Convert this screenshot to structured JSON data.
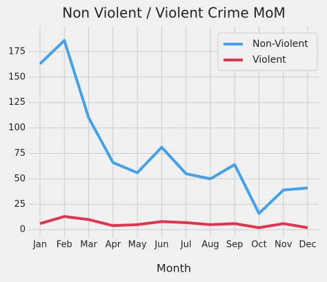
{
  "chart_data": {
    "type": "line",
    "title": "Non Violent / Violent Crime MoM",
    "x_label": "Month",
    "categories": [
      "Jan",
      "Feb",
      "Mar",
      "Apr",
      "May",
      "Jun",
      "Jul",
      "Aug",
      "Sep",
      "Oct",
      "Nov",
      "Dec"
    ],
    "series": [
      {
        "name": "Non-Violent",
        "color": "#42a1ec",
        "values": [
          163,
          186,
          110,
          66,
          56,
          81,
          55,
          50,
          64,
          16,
          39,
          41
        ]
      },
      {
        "name": "Violent",
        "color": "#e6334b",
        "values": [
          6,
          13,
          10,
          4,
          5,
          8,
          7,
          5,
          6,
          2,
          6,
          2
        ]
      }
    ],
    "ylim": [
      -8,
      200
    ],
    "yticks": [
      0,
      25,
      50,
      75,
      100,
      125,
      150,
      175
    ],
    "grid": true,
    "legend": "upper right"
  }
}
